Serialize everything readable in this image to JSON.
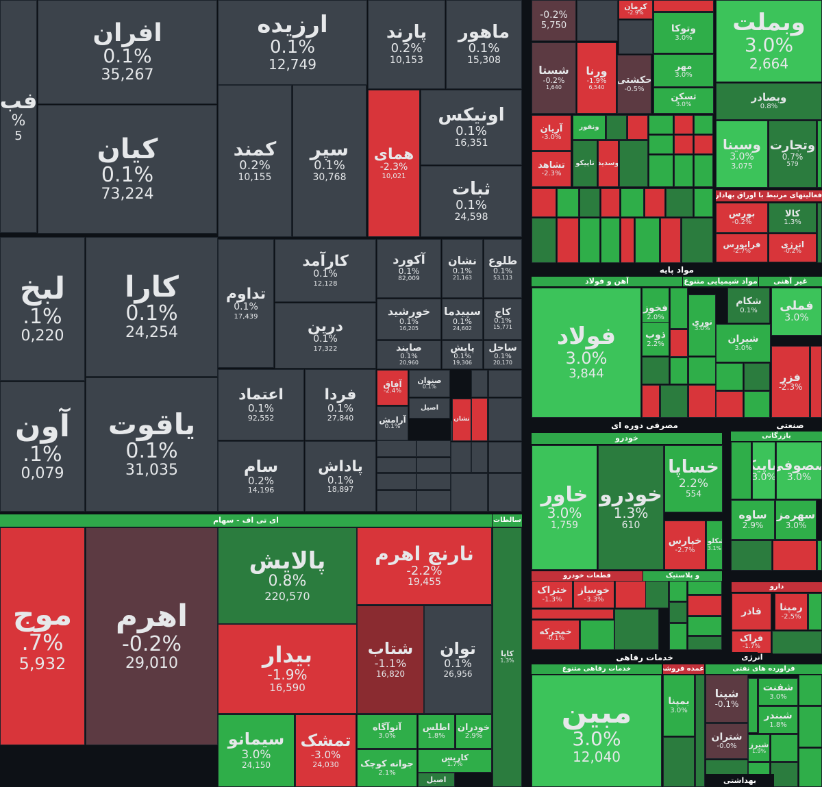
{
  "colors": {
    "neutral": "#3c434b",
    "neutral_dark": "#2f353c",
    "green": "#2fae49",
    "green_bright": "#3cc35a",
    "green_dark": "#2b7c3e",
    "red": "#d8353a",
    "red_dark": "#8a2b30",
    "maroon": "#5c3a42",
    "header_green": "#2fa84a",
    "header_red": "#c3313a",
    "background": "#0d1116"
  },
  "sector_headers": {
    "etf": "ای تی اف - سهام",
    "etf_side": "سالطات",
    "basic_materials": "مواد پایه",
    "steel": "آهن و فولاد",
    "chemical": "مواد شیمیایی متنوع",
    "non_metal": "غیر آهنی",
    "consumer": "مصرفی دوره ای",
    "auto": "خودرو",
    "industrial": "صنعتی",
    "auto_parts": "قطعات خودرو",
    "plastic": "و پلاستیک",
    "financial": "فعالیتهای مرتبط با اوراق بهادار",
    "services": "خدمات رفاهی",
    "services_sub": "خدمات رفاهی متنوع",
    "energy": "انرژی",
    "oil": "فراورده های نفتی",
    "pharma": "دارو",
    "health": "بهداشتی",
    "trade": "بازرگانی",
    "trade2": "عمده فروشی"
  },
  "tiles": [
    {
      "name": "افران",
      "pct": "0.1%",
      "val": "35,267",
      "c": "neutral"
    },
    {
      "name": "ارزیده",
      "pct": "0.1%",
      "val": "12,749",
      "c": "neutral"
    },
    {
      "name": "پارند",
      "pct": "0.2%",
      "val": "10,153",
      "c": "neutral"
    },
    {
      "name": "ماهور",
      "pct": "0.1%",
      "val": "15,308",
      "c": "neutral"
    },
    {
      "name": "فب",
      "pct": "%",
      "val": "5",
      "c": "neutral"
    },
    {
      "name": "کیان",
      "pct": "0.1%",
      "val": "73,224",
      "c": "neutral"
    },
    {
      "name": "کمند",
      "pct": "0.2%",
      "val": "10,155",
      "c": "neutral"
    },
    {
      "name": "سپر",
      "pct": "0.1%",
      "val": "30,768",
      "c": "neutral"
    },
    {
      "name": "همای",
      "pct": "-2.3%",
      "val": "10,021",
      "c": "red"
    },
    {
      "name": "اونیکس",
      "pct": "0.1%",
      "val": "16,351",
      "c": "neutral"
    },
    {
      "name": "ثبات",
      "pct": "0.1%",
      "val": "24,598",
      "c": "neutral"
    },
    {
      "name": "لبخ",
      "pct": ".1%",
      "val": "0,220",
      "c": "neutral"
    },
    {
      "name": "کارا",
      "pct": "0.1%",
      "val": "24,254",
      "c": "neutral"
    },
    {
      "name": "تداوم",
      "pct": "0.1%",
      "val": "17,439",
      "c": "neutral"
    },
    {
      "name": "کارآمد",
      "pct": "0.1%",
      "val": "12,128",
      "c": "neutral"
    },
    {
      "name": "آکورد",
      "pct": "0.1%",
      "val": "82,009",
      "c": "neutral"
    },
    {
      "name": "نشان",
      "pct": "0.1%",
      "val": "21,163",
      "c": "neutral"
    },
    {
      "name": "طلوع",
      "pct": "0.1%",
      "val": "53,113",
      "c": "neutral"
    },
    {
      "name": "درین",
      "pct": "0.1%",
      "val": "17,322",
      "c": "neutral"
    },
    {
      "name": "خورشید",
      "pct": "0.1%",
      "val": "16,205",
      "c": "neutral"
    },
    {
      "name": "سپیدما",
      "pct": "0.1%",
      "val": "24,602",
      "c": "neutral"
    },
    {
      "name": "کاج",
      "pct": "0.1%",
      "val": "15,771",
      "c": "neutral"
    },
    {
      "name": "صایند",
      "pct": "0.1%",
      "val": "20,960",
      "c": "neutral"
    },
    {
      "name": "پایش",
      "pct": "0.1%",
      "val": "19,306",
      "c": "neutral"
    },
    {
      "name": "ساحل",
      "pct": "0.1%",
      "val": "20,170",
      "c": "neutral"
    },
    {
      "name": "آون",
      "pct": ".1%",
      "val": "0,079",
      "c": "neutral"
    },
    {
      "name": "یاقوت",
      "pct": "0.1%",
      "val": "31,035",
      "c": "neutral"
    },
    {
      "name": "اعتماد",
      "pct": "0.1%",
      "val": "92,552",
      "c": "neutral"
    },
    {
      "name": "فردا",
      "pct": "0.1%",
      "val": "27,840",
      "c": "neutral"
    },
    {
      "name": "آفاق",
      "pct": "-2.4%",
      "val": "",
      "c": "red"
    },
    {
      "name": "صنوان",
      "pct": "0.1%",
      "val": "",
      "c": "neutral"
    },
    {
      "name": "آرامش",
      "pct": "0.1%",
      "val": "",
      "c": "neutral"
    },
    {
      "name": "اصیل",
      "pct": "",
      "val": "",
      "c": "neutral"
    },
    {
      "name": "نشان",
      "pct": "",
      "val": "",
      "c": "red"
    },
    {
      "name": "سام",
      "pct": "0.2%",
      "val": "14,196",
      "c": "neutral"
    },
    {
      "name": "پاداش",
      "pct": "0.1%",
      "val": "18,897",
      "c": "neutral"
    },
    {
      "name": "موج",
      "pct": ".7%",
      "val": "5,932",
      "c": "red"
    },
    {
      "name": "اهرم",
      "pct": "-0.2%",
      "val": "29,010",
      "c": "maroon"
    },
    {
      "name": "پالایش",
      "pct": "0.8%",
      "val": "220,570",
      "c": "green_dark"
    },
    {
      "name": "نارنج اهرم",
      "pct": "-2.2%",
      "val": "19,455",
      "c": "red"
    },
    {
      "name": "بیدار",
      "pct": "-1.9%",
      "val": "16,590",
      "c": "red"
    },
    {
      "name": "شتاب",
      "pct": "-1.1%",
      "val": "16,820",
      "c": "red_dark"
    },
    {
      "name": "توان",
      "pct": "0.1%",
      "val": "26,956",
      "c": "neutral"
    },
    {
      "name": "سیمانو",
      "pct": "3.0%",
      "val": "24,150",
      "c": "green"
    },
    {
      "name": "تمشک",
      "pct": "-3.0%",
      "val": "24,030",
      "c": "red"
    },
    {
      "name": "آتوآگاه",
      "pct": "3.0%",
      "val": "",
      "c": "green"
    },
    {
      "name": "اطلس",
      "pct": "1.8%",
      "val": "",
      "c": "green"
    },
    {
      "name": "خودران",
      "pct": "2.9%",
      "val": "",
      "c": "green"
    },
    {
      "name": "جوانه کوچک",
      "pct": "2.1%",
      "val": "",
      "c": "green"
    },
    {
      "name": "کاریس",
      "pct": "1.7%",
      "val": "",
      "c": "green"
    },
    {
      "name": "اصیل",
      "pct": "",
      "val": "",
      "c": "green_dark"
    },
    {
      "name": "کاپا",
      "pct": "1.3%",
      "val": "",
      "c": "green_dark"
    },
    {
      "name": "",
      "pct": "-0.2%",
      "val": "5,750",
      "c": "maroon"
    },
    {
      "name": "کرمان",
      "pct": "-2.9%",
      "val": "",
      "c": "red"
    },
    {
      "name": "وبملت",
      "pct": "3.0%",
      "val": "2,664",
      "c": "green_bright"
    },
    {
      "name": "وتوکا",
      "pct": "3.0%",
      "val": "",
      "c": "green"
    },
    {
      "name": "شستا",
      "pct": "-0.2%",
      "val": "1,640",
      "c": "maroon"
    },
    {
      "name": "ورنا",
      "pct": "-1.9%",
      "val": "6,540",
      "c": "red"
    },
    {
      "name": "حکشتی",
      "pct": "-0.5%",
      "val": "",
      "c": "maroon"
    },
    {
      "name": "مهر",
      "pct": "3.0%",
      "val": "",
      "c": "green"
    },
    {
      "name": "تسکن",
      "pct": "3.0%",
      "val": "",
      "c": "green"
    },
    {
      "name": "وبصادر",
      "pct": "0.8%",
      "val": "",
      "c": "green_dark"
    },
    {
      "name": "آریان",
      "pct": "-3.0%",
      "val": "",
      "c": "red"
    },
    {
      "name": "ونفور",
      "pct": "",
      "val": "",
      "c": "green"
    },
    {
      "name": "وسینا",
      "pct": "3.0%",
      "val": "3,075",
      "c": "green_bright"
    },
    {
      "name": "وتجارت",
      "pct": "0.7%",
      "val": "579",
      "c": "green_dark"
    },
    {
      "name": "تشاهد",
      "pct": "-2.3%",
      "val": "",
      "c": "red"
    },
    {
      "name": "تاپیکو",
      "pct": "",
      "val": "",
      "c": "green_dark"
    },
    {
      "name": "وسدید",
      "pct": "",
      "val": "",
      "c": "red"
    },
    {
      "name": "بورس",
      "pct": "-0.2%",
      "val": "",
      "c": "red"
    },
    {
      "name": "کالا",
      "pct": "1.3%",
      "val": "",
      "c": "green_dark"
    },
    {
      "name": "فرابورس",
      "pct": "-2.7%",
      "val": "",
      "c": "red"
    },
    {
      "name": "انرژی",
      "pct": "-0.2%",
      "val": "",
      "c": "red"
    },
    {
      "name": "فولاد",
      "pct": "3.0%",
      "val": "3,844",
      "c": "green_bright"
    },
    {
      "name": "فخوز",
      "pct": "2.0%",
      "val": "",
      "c": "green"
    },
    {
      "name": "ذوب",
      "pct": "2.2%",
      "val": "",
      "c": "green"
    },
    {
      "name": "شکام",
      "pct": "0.1%",
      "val": "",
      "c": "green_dark"
    },
    {
      "name": "شیران",
      "pct": "3.0%",
      "val": "",
      "c": "green"
    },
    {
      "name": "نوری",
      "pct": "3.0%",
      "val": "",
      "c": "green"
    },
    {
      "name": "فملی",
      "pct": "3.0%",
      "val": "",
      "c": "green_bright"
    },
    {
      "name": "فزر",
      "pct": "-2.3%",
      "val": "",
      "c": "red"
    },
    {
      "name": "خاور",
      "pct": "3.0%",
      "val": "1,759",
      "c": "green_bright"
    },
    {
      "name": "خودرو",
      "pct": "1.3%",
      "val": "610",
      "c": "green_dark"
    },
    {
      "name": "خساپا",
      "pct": "2.2%",
      "val": "554",
      "c": "green"
    },
    {
      "name": "خپارس",
      "pct": "-2.7%",
      "val": "",
      "c": "red"
    },
    {
      "name": "شکلوه",
      "pct": "3.1%",
      "val": "",
      "c": "green"
    },
    {
      "name": "ساپیک",
      "pct": "3.0%",
      "val": "",
      "c": "green_bright"
    },
    {
      "name": "صصوفی",
      "pct": "3.0%",
      "val": "",
      "c": "green_bright"
    },
    {
      "name": "ساوه",
      "pct": "2.9%",
      "val": "",
      "c": "green"
    },
    {
      "name": "سهرمز",
      "pct": "3.0%",
      "val": "",
      "c": "green"
    },
    {
      "name": "ختراک",
      "pct": "-1.3%",
      "val": "",
      "c": "red"
    },
    {
      "name": "خوساز",
      "pct": "-3.3%",
      "val": "",
      "c": "red"
    },
    {
      "name": "خمحرکه",
      "pct": "-0.1%",
      "val": "",
      "c": "red"
    },
    {
      "name": "فاذر",
      "pct": "",
      "val": "",
      "c": "red"
    },
    {
      "name": "رمپنا",
      "pct": "-2.5%",
      "val": "",
      "c": "red"
    },
    {
      "name": "فراک",
      "pct": "-1.7%",
      "val": "",
      "c": "red"
    },
    {
      "name": "مبین",
      "pct": "3.0%",
      "val": "12,040",
      "c": "green_bright"
    },
    {
      "name": "بمپنا",
      "pct": "3.0%",
      "val": "",
      "c": "green"
    },
    {
      "name": "شپنا",
      "pct": "-0.1%",
      "val": "",
      "c": "maroon"
    },
    {
      "name": "شفنت",
      "pct": "3.0%",
      "val": "",
      "c": "green"
    },
    {
      "name": "شبندر",
      "pct": "1.8%",
      "val": "",
      "c": "green"
    },
    {
      "name": "شتران",
      "pct": "-0.0%",
      "val": "",
      "c": "maroon"
    },
    {
      "name": "شیرز",
      "pct": "1.9%",
      "val": "",
      "c": "green"
    }
  ]
}
